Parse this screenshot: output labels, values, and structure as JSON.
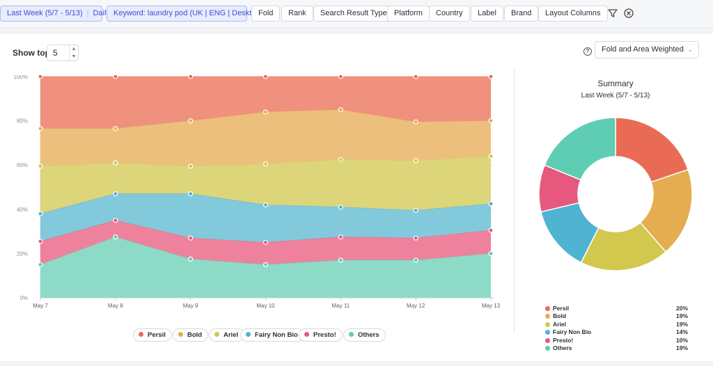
{
  "toolbar": {
    "period": "Last Week (5/7 - 5/13)",
    "granularity": "Daily",
    "keyword": "Keyword: laundry pod (UK | ENG | Desktop)",
    "filters": [
      "Fold",
      "Rank",
      "Search Result Type",
      "Platform",
      "Country",
      "Label",
      "Brand",
      "Layout Columns"
    ],
    "icons": [
      "filter-icon",
      "clear-filters-icon"
    ]
  },
  "controls": {
    "show_top_label": "Show top",
    "show_top_value": "5",
    "help_icon": "question-circle-icon",
    "help_glyph": "?",
    "metric_select": "Fold and Area Weighted"
  },
  "chart_data": [
    {
      "type": "area",
      "stacked": true,
      "x": [
        "May 7",
        "May 8",
        "May 9",
        "May 10",
        "May 11",
        "May 12",
        "May 13"
      ],
      "ylim": [
        0,
        100
      ],
      "yticks": [
        "0%",
        "20%",
        "40%",
        "60%",
        "80%",
        "100%"
      ],
      "grid": true,
      "legend_position": "bottom",
      "series": [
        {
          "name": "Persil",
          "color": "#f0907e",
          "marker": "#ea6b55",
          "values": [
            23.5,
            23.5,
            20,
            16,
            15,
            20.5,
            20
          ]
        },
        {
          "name": "Bold",
          "color": "#ecc07c",
          "marker": "#e5ad4f",
          "values": [
            17,
            15.5,
            20.5,
            23.5,
            22.5,
            17.5,
            16
          ]
        },
        {
          "name": "Ariel",
          "color": "#dcd57a",
          "marker": "#d2c84e",
          "values": [
            21.5,
            14,
            12.5,
            18.5,
            21.5,
            22.5,
            21.5
          ]
        },
        {
          "name": "Fairy Non Bio",
          "color": "#82c9dc",
          "marker": "#4fb3d1",
          "values": [
            12.5,
            12,
            20,
            17,
            13.5,
            12.5,
            12
          ]
        },
        {
          "name": "Presto!",
          "color": "#ee829d",
          "marker": "#e6587d",
          "values": [
            10.5,
            7.5,
            9.5,
            10,
            10.5,
            10,
            10.5
          ]
        },
        {
          "name": "Others",
          "color": "#8ddbc7",
          "marker": "#5ecdb4",
          "values": [
            15,
            27.5,
            17.5,
            15,
            17,
            17,
            20
          ]
        }
      ]
    },
    {
      "type": "pie",
      "donut": true,
      "title": "Summary",
      "subtitle": "Last Week (5/7 - 5/13)",
      "labels": [
        "Persil",
        "Bold",
        "Ariel",
        "Fairy Non Bio",
        "Presto!",
        "Others"
      ],
      "values": [
        20,
        19,
        19,
        14,
        10,
        19
      ],
      "value_labels": [
        "20%",
        "19%",
        "19%",
        "14%",
        "10%",
        "19%"
      ],
      "colors": [
        "#ea6b55",
        "#e5ad4f",
        "#d2c84e",
        "#4fb3d1",
        "#e6587d",
        "#5ecdb4"
      ]
    }
  ]
}
